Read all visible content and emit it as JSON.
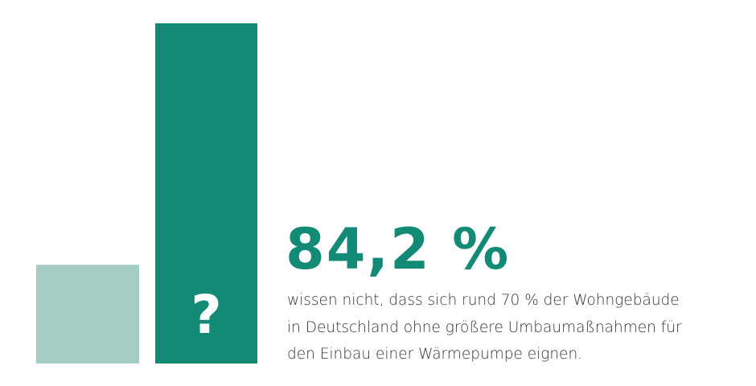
{
  "colors": {
    "bar_light": "#a3cdc2",
    "bar_dark": "#138a75",
    "headline": "#138a75",
    "bar_label": "#ffffff",
    "text": "#333333"
  },
  "chart_data": {
    "type": "bar",
    "categories": [
      "",
      ""
    ],
    "values": [
      29,
      100
    ],
    "ylim": [
      0,
      100
    ],
    "grid": false,
    "bar_labels": [
      "",
      "?"
    ],
    "headline": "84,2 %",
    "description": [
      "wissen nicht, dass sich rund 70 % der Wohngebäude",
      "in Deutschland ohne größere Umbaumaßnahmen für",
      "den Einbau einer Wärmepumpe eignen."
    ]
  }
}
